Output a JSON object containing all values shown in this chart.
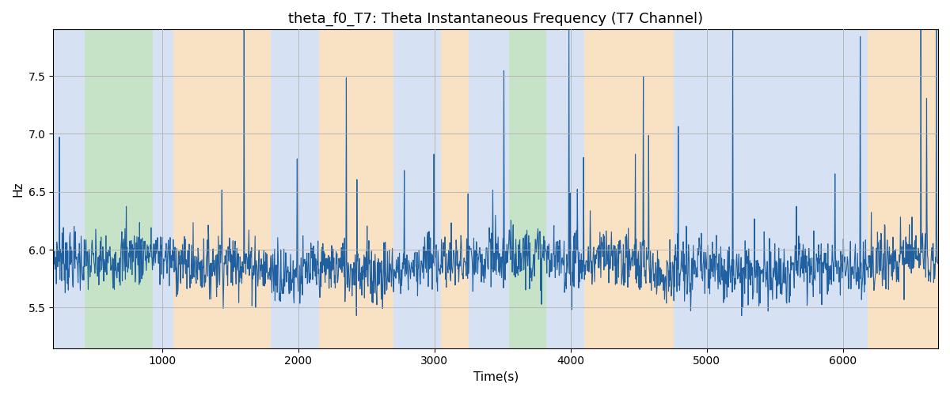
{
  "title": "theta_f0_T7: Theta Instantaneous Frequency (T7 Channel)",
  "xlabel": "Time(s)",
  "ylabel": "Hz",
  "xlim": [
    200,
    6700
  ],
  "ylim": [
    5.15,
    7.9
  ],
  "yticks": [
    5.5,
    6.0,
    6.5,
    7.0,
    7.5
  ],
  "line_color": "#2060a0",
  "line_width": 0.8,
  "grid_color": "#b0b0b0",
  "regions": [
    {
      "xmin": 200,
      "xmax": 430,
      "color": "#aec6e8",
      "alpha": 0.5
    },
    {
      "xmin": 430,
      "xmax": 930,
      "color": "#90c990",
      "alpha": 0.5
    },
    {
      "xmin": 930,
      "xmax": 1080,
      "color": "#aec6e8",
      "alpha": 0.5
    },
    {
      "xmin": 1080,
      "xmax": 1800,
      "color": "#f5c58a",
      "alpha": 0.5
    },
    {
      "xmin": 1800,
      "xmax": 2150,
      "color": "#aec6e8",
      "alpha": 0.5
    },
    {
      "xmin": 2150,
      "xmax": 2700,
      "color": "#f5c58a",
      "alpha": 0.5
    },
    {
      "xmin": 2700,
      "xmax": 3050,
      "color": "#aec6e8",
      "alpha": 0.5
    },
    {
      "xmin": 3050,
      "xmax": 3250,
      "color": "#f5c58a",
      "alpha": 0.5
    },
    {
      "xmin": 3250,
      "xmax": 3550,
      "color": "#aec6e8",
      "alpha": 0.5
    },
    {
      "xmin": 3550,
      "xmax": 3820,
      "color": "#90c990",
      "alpha": 0.5
    },
    {
      "xmin": 3820,
      "xmax": 4100,
      "color": "#aec6e8",
      "alpha": 0.5
    },
    {
      "xmin": 4100,
      "xmax": 4760,
      "color": "#f5c58a",
      "alpha": 0.5
    },
    {
      "xmin": 4760,
      "xmax": 6180,
      "color": "#aec6e8",
      "alpha": 0.5
    },
    {
      "xmin": 6180,
      "xmax": 6700,
      "color": "#f5c58a",
      "alpha": 0.5
    }
  ],
  "seed": 7,
  "n_points": 2000,
  "base_freq": 5.87,
  "noise_std": 0.13,
  "spike_prob": 0.025,
  "spike_mean": 0.7,
  "spike_max": 2.5
}
